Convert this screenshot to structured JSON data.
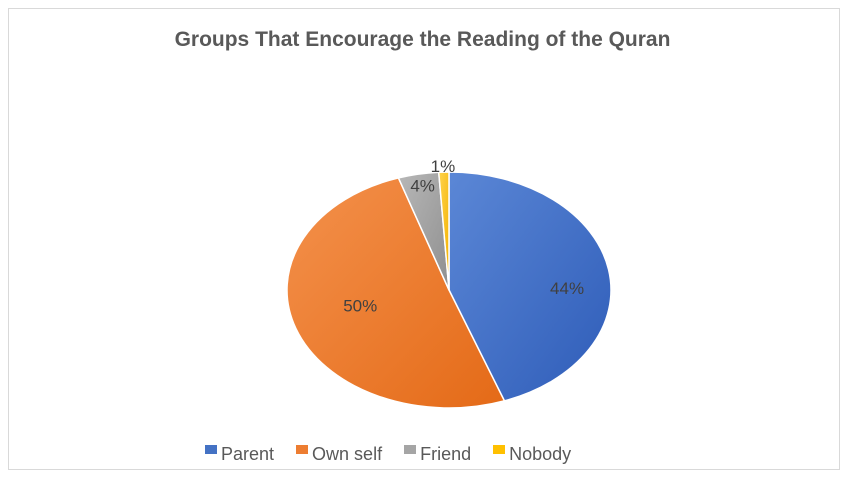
{
  "chart_data": {
    "type": "pie",
    "title": "Groups That Encourage the Reading of the Quran",
    "categories": [
      "Parent",
      "Own self",
      "Friend",
      "Nobody"
    ],
    "values": [
      44,
      50,
      4,
      1
    ],
    "labels": [
      "44%",
      "50%",
      "4%",
      "1%"
    ],
    "colors": [
      "#4472c4",
      "#ed7d31",
      "#a5a5a5",
      "#ffc000"
    ],
    "legend_position": "bottom"
  }
}
